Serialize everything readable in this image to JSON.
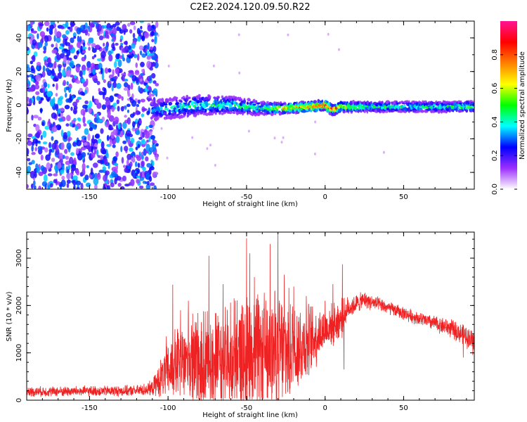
{
  "title": "C2E2.2024.120.09.50.R22",
  "chart_data": [
    {
      "type": "heatmap",
      "xlabel": "Height of straight line (km)",
      "ylabel": "Frequency (Hz)",
      "xlim": [
        -190,
        95
      ],
      "ylim": [
        -50,
        50
      ],
      "x_ticks": [
        -150,
        -100,
        -50,
        0,
        50
      ],
      "x_tick_labels": [
        "-150",
        "-100",
        "-50",
        "0",
        "50"
      ],
      "y_ticks": [
        -40,
        -20,
        0,
        20,
        40
      ],
      "y_tick_labels": [
        "-40",
        "-20",
        "0",
        "20",
        "40"
      ],
      "colorbar": {
        "label": "Normalized spectral amplitude",
        "range": [
          0,
          1
        ],
        "ticks": [
          0.0,
          0.2,
          0.4,
          0.6,
          0.8
        ],
        "tick_labels": [
          "0.0",
          "0.2",
          "0.4",
          "0.6",
          "0.8"
        ],
        "colors": [
          "#ffffff",
          "#9b30ff",
          "#0000ff",
          "#00ffff",
          "#00ff00",
          "#ffff00",
          "#ff7f00",
          "#ff0000",
          "#ff1493"
        ]
      },
      "noise_region": {
        "x": [
          -190,
          -110
        ],
        "amplitude": 0.18
      },
      "ridge": [
        {
          "x": -110,
          "freq": -3,
          "width": 6,
          "amp": 0.3
        },
        {
          "x": -100,
          "freq": -2,
          "width": 6,
          "amp": 0.4
        },
        {
          "x": -80,
          "freq": 0,
          "width": 6,
          "amp": 0.45
        },
        {
          "x": -60,
          "freq": 0,
          "width": 5,
          "amp": 0.45
        },
        {
          "x": -40,
          "freq": -2,
          "width": 4,
          "amp": 0.45
        },
        {
          "x": -25,
          "freq": -2,
          "width": 3,
          "amp": 0.7
        },
        {
          "x": -10,
          "freq": -1,
          "width": 3,
          "amp": 0.8
        },
        {
          "x": 0,
          "freq": 0,
          "width": 3,
          "amp": 0.9
        },
        {
          "x": 5,
          "freq": -3,
          "width": 3,
          "amp": 0.85
        },
        {
          "x": 10,
          "freq": -1,
          "width": 3,
          "amp": 0.7
        },
        {
          "x": 30,
          "freq": -1,
          "width": 3,
          "amp": 0.45
        },
        {
          "x": 60,
          "freq": -1,
          "width": 3,
          "amp": 0.45
        },
        {
          "x": 95,
          "freq": -1,
          "width": 3,
          "amp": 0.5
        }
      ]
    },
    {
      "type": "line",
      "xlabel": "Height of straight line (km)",
      "ylabel": "SNR (10 * v/v)",
      "xlim": [
        -190,
        95
      ],
      "ylim": [
        0,
        3550
      ],
      "x_ticks": [
        -150,
        -100,
        -50,
        0,
        50
      ],
      "x_tick_labels": [
        "-150",
        "-100",
        "-50",
        "0",
        "50"
      ],
      "y_ticks": [
        0,
        1000,
        2000,
        3000
      ],
      "y_tick_labels": [
        "0",
        "1000",
        "2000",
        "3000"
      ],
      "color": "#ee2222",
      "envelope": [
        {
          "x": -190,
          "base": 180,
          "amp": 120
        },
        {
          "x": -120,
          "base": 200,
          "amp": 130
        },
        {
          "x": -110,
          "base": 250,
          "amp": 180
        },
        {
          "x": -105,
          "base": 450,
          "amp": 450
        },
        {
          "x": -95,
          "base": 750,
          "amp": 900
        },
        {
          "x": -80,
          "base": 850,
          "amp": 1200
        },
        {
          "x": -60,
          "base": 900,
          "amp": 1300
        },
        {
          "x": -40,
          "base": 1000,
          "amp": 1500
        },
        {
          "x": -25,
          "base": 1050,
          "amp": 1400
        },
        {
          "x": -10,
          "base": 1250,
          "amp": 900
        },
        {
          "x": 0,
          "base": 1500,
          "amp": 500
        },
        {
          "x": 10,
          "base": 1700,
          "amp": 500
        },
        {
          "x": 15,
          "base": 1950,
          "amp": 260
        },
        {
          "x": 25,
          "base": 2120,
          "amp": 200
        },
        {
          "x": 40,
          "base": 1950,
          "amp": 160
        },
        {
          "x": 60,
          "base": 1720,
          "amp": 160
        },
        {
          "x": 80,
          "base": 1520,
          "amp": 220
        },
        {
          "x": 95,
          "base": 1250,
          "amp": 280
        }
      ],
      "spikes": [
        {
          "x": -101,
          "y": 1350
        },
        {
          "x": -97,
          "y": 2440
        },
        {
          "x": -92,
          "y": 1900
        },
        {
          "x": -87,
          "y": 2100
        },
        {
          "x": -74,
          "y": 3050
        },
        {
          "x": -65,
          "y": 2450
        },
        {
          "x": -58,
          "y": 2150
        },
        {
          "x": -50,
          "y": 3420
        },
        {
          "x": -48,
          "y": 3100
        },
        {
          "x": -45,
          "y": 2600
        },
        {
          "x": -40,
          "y": 1900
        },
        {
          "x": -35,
          "y": 3300
        },
        {
          "x": -32,
          "y": 2300
        },
        {
          "x": -30,
          "y": 3550
        },
        {
          "x": -26,
          "y": 2650
        },
        {
          "x": -20,
          "y": 2400
        },
        {
          "x": -12,
          "y": 2200
        },
        {
          "x": 0,
          "y": 2100
        },
        {
          "x": 5,
          "y": 2450
        },
        {
          "x": 11,
          "y": 2870
        }
      ],
      "dips": [
        {
          "x": 12,
          "y": 650
        },
        {
          "x": 88,
          "y": 900
        },
        {
          "x": 94,
          "y": 950
        }
      ]
    }
  ]
}
